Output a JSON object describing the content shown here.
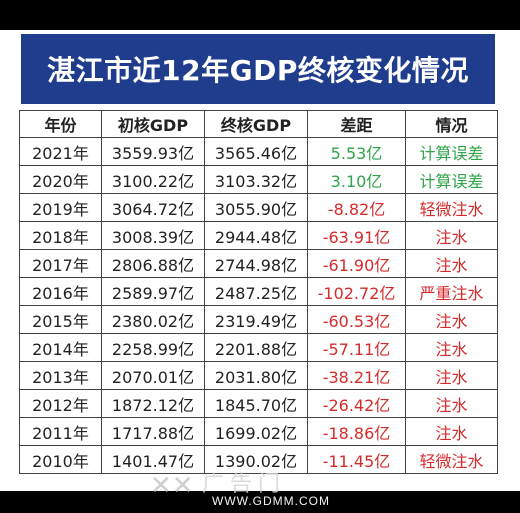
{
  "title": "湛江市近12年GDP终核变化情况",
  "headers": [
    "年份",
    "初核GDP",
    "终核GDP",
    "差距",
    "情况"
  ],
  "rows": [
    {
      "year": "2021年",
      "initial": "3559.93亿",
      "final": "3565.46亿",
      "diff": "5.53亿",
      "status": "计算误差",
      "tone": "pos"
    },
    {
      "year": "2020年",
      "initial": "3100.22亿",
      "final": "3103.32亿",
      "diff": "3.10亿",
      "status": "计算误差",
      "tone": "pos"
    },
    {
      "year": "2019年",
      "initial": "3064.72亿",
      "final": "3055.90亿",
      "diff": "-8.82亿",
      "status": "轻微注水",
      "tone": "neg"
    },
    {
      "year": "2018年",
      "initial": "3008.39亿",
      "final": "2944.48亿",
      "diff": "-63.91亿",
      "status": "注水",
      "tone": "neg"
    },
    {
      "year": "2017年",
      "initial": "2806.88亿",
      "final": "2744.98亿",
      "diff": "-61.90亿",
      "status": "注水",
      "tone": "neg"
    },
    {
      "year": "2016年",
      "initial": "2589.97亿",
      "final": "2487.25亿",
      "diff": "-102.72亿",
      "status": "严重注水",
      "tone": "neg"
    },
    {
      "year": "2015年",
      "initial": "2380.02亿",
      "final": "2319.49亿",
      "diff": "-60.53亿",
      "status": "注水",
      "tone": "neg"
    },
    {
      "year": "2014年",
      "initial": "2258.99亿",
      "final": "2201.88亿",
      "diff": "-57.11亿",
      "status": "注水",
      "tone": "neg"
    },
    {
      "year": "2013年",
      "initial": "2070.01亿",
      "final": "2031.80亿",
      "diff": "-38.21亿",
      "status": "注水",
      "tone": "neg"
    },
    {
      "year": "2012年",
      "initial": "1872.12亿",
      "final": "1845.70亿",
      "diff": "-26.42亿",
      "status": "注水",
      "tone": "neg"
    },
    {
      "year": "2011年",
      "initial": "1717.88亿",
      "final": "1699.02亿",
      "diff": "-18.86亿",
      "status": "注水",
      "tone": "neg"
    },
    {
      "year": "2010年",
      "initial": "1401.47亿",
      "final": "1390.02亿",
      "diff": "-11.45亿",
      "status": "轻微注水",
      "tone": "neg"
    }
  ],
  "colors": {
    "title_bg": "#1f3d8c",
    "positive": "#2fa44a",
    "negative": "#d62b2b"
  },
  "watermark": {
    "name": "广告门",
    "url": "WWW.GDMM.COM",
    "logo_icon": "gdmm-logo-icon"
  }
}
